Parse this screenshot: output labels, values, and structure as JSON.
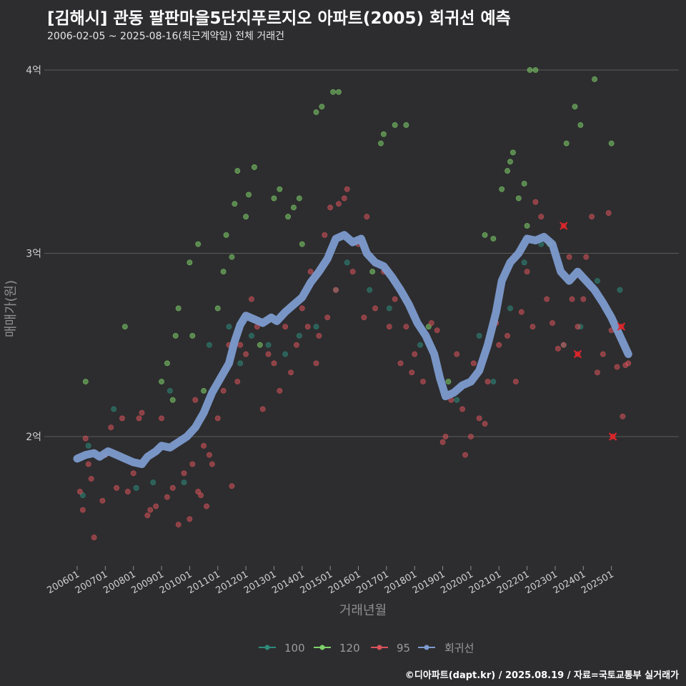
{
  "header": {
    "title": "[김해시] 관동 팔판마을5단지푸르지오 아파트(2005) 회귀선 예측",
    "subtitle": "2006-02-05 ~ 2025-08-16(최근계약일) 전체 거래건"
  },
  "caption": "©디아파트(dapt.kr) / 2025.08.19 / 자료=국토교통부 실거래가",
  "colors": {
    "background": "#2d2d2f",
    "grid": "#5a5a5a",
    "s100": "#2e8b7a",
    "s120": "#7fd16a",
    "s95": "#d9535a",
    "regression": "#7d9bcf",
    "cancelled": "#e0262b"
  },
  "chart_data": {
    "type": "scatter",
    "title": "[김해시] 관동 팔판마을5단지푸르지오 아파트(2005) 회귀선 예측",
    "xlabel": "거래년월",
    "ylabel": "매매가(원)",
    "x_ticks": [
      "200601",
      "200701",
      "200801",
      "200901",
      "201001",
      "201101",
      "201201",
      "201301",
      "201401",
      "201501",
      "201601",
      "201701",
      "201801",
      "201901",
      "202001",
      "202101",
      "202201",
      "202301",
      "202401",
      "202501"
    ],
    "y_ticks": [
      {
        "value": 2,
        "label": "2억"
      },
      {
        "value": 3,
        "label": "3억"
      },
      {
        "value": 4,
        "label": "4억"
      }
    ],
    "ylim": [
      1.3,
      4.05
    ],
    "xlim": [
      2005.85,
      2025.75
    ],
    "grid": true,
    "legend_position": "bottom",
    "legend": [
      "100",
      "120",
      "95",
      "회귀선"
    ],
    "series": [
      {
        "name": "100",
        "key": "s100",
        "points": [
          [
            2006.2,
            1.68
          ],
          [
            2006.4,
            1.95
          ],
          [
            2007.3,
            2.15
          ],
          [
            2008.1,
            1.72
          ],
          [
            2008.7,
            1.75
          ],
          [
            2009.3,
            2.25
          ],
          [
            2009.8,
            1.75
          ],
          [
            2010.2,
            2.05
          ],
          [
            2010.7,
            2.5
          ],
          [
            2011.4,
            2.6
          ],
          [
            2011.8,
            2.4
          ],
          [
            2012.2,
            2.55
          ],
          [
            2012.8,
            2.5
          ],
          [
            2013.4,
            2.45
          ],
          [
            2013.9,
            2.55
          ],
          [
            2014.5,
            2.6
          ],
          [
            2015.2,
            2.8
          ],
          [
            2015.6,
            2.95
          ],
          [
            2016.4,
            2.8
          ],
          [
            2017.1,
            2.7
          ],
          [
            2018.2,
            2.5
          ],
          [
            2019.5,
            2.2
          ],
          [
            2020.3,
            2.55
          ],
          [
            2020.8,
            2.3
          ],
          [
            2021.4,
            2.7
          ],
          [
            2021.9,
            2.95
          ],
          [
            2022.5,
            3.05
          ],
          [
            2023.3,
            2.5
          ],
          [
            2023.9,
            2.6
          ],
          [
            2024.5,
            2.85
          ],
          [
            2025.3,
            2.8
          ]
        ]
      },
      {
        "name": "120",
        "key": "s120",
        "points": [
          [
            2006.3,
            2.3
          ],
          [
            2007.7,
            2.6
          ],
          [
            2009.0,
            2.3
          ],
          [
            2009.2,
            2.4
          ],
          [
            2009.4,
            2.2
          ],
          [
            2009.5,
            2.55
          ],
          [
            2009.6,
            2.7
          ],
          [
            2010.0,
            2.95
          ],
          [
            2010.1,
            2.55
          ],
          [
            2010.3,
            3.05
          ],
          [
            2010.5,
            2.25
          ],
          [
            2011.0,
            2.7
          ],
          [
            2011.2,
            2.9
          ],
          [
            2011.3,
            3.1
          ],
          [
            2011.5,
            2.98
          ],
          [
            2011.6,
            3.27
          ],
          [
            2011.7,
            3.45
          ],
          [
            2012.0,
            3.2
          ],
          [
            2012.1,
            3.32
          ],
          [
            2012.3,
            3.47
          ],
          [
            2012.5,
            2.5
          ],
          [
            2013.0,
            3.3
          ],
          [
            2013.2,
            3.35
          ],
          [
            2013.5,
            3.2
          ],
          [
            2013.7,
            3.25
          ],
          [
            2013.9,
            3.3
          ],
          [
            2014.0,
            3.05
          ],
          [
            2014.5,
            3.77
          ],
          [
            2014.7,
            3.8
          ],
          [
            2015.1,
            3.88
          ],
          [
            2015.3,
            3.88
          ],
          [
            2016.5,
            2.9
          ],
          [
            2016.8,
            3.6
          ],
          [
            2016.9,
            3.65
          ],
          [
            2017.3,
            3.7
          ],
          [
            2017.7,
            3.7
          ],
          [
            2018.5,
            2.6
          ],
          [
            2019.2,
            2.3
          ],
          [
            2020.5,
            3.1
          ],
          [
            2020.8,
            3.08
          ],
          [
            2021.1,
            3.35
          ],
          [
            2021.3,
            3.45
          ],
          [
            2021.4,
            3.5
          ],
          [
            2021.5,
            3.55
          ],
          [
            2021.7,
            3.3
          ],
          [
            2021.9,
            3.38
          ],
          [
            2022.0,
            3.15
          ],
          [
            2022.1,
            4.0
          ],
          [
            2022.3,
            4.0
          ],
          [
            2022.8,
            3.05
          ],
          [
            2023.4,
            3.6
          ],
          [
            2023.7,
            3.8
          ],
          [
            2023.9,
            3.7
          ],
          [
            2024.4,
            3.95
          ],
          [
            2025.0,
            3.6
          ]
        ]
      },
      {
        "name": "95",
        "key": "s95",
        "points": [
          [
            2006.1,
            1.7
          ],
          [
            2006.2,
            1.6
          ],
          [
            2006.3,
            1.99
          ],
          [
            2006.4,
            1.85
          ],
          [
            2006.5,
            1.77
          ],
          [
            2006.6,
            1.45
          ],
          [
            2006.9,
            1.65
          ],
          [
            2007.0,
            1.9
          ],
          [
            2007.2,
            2.05
          ],
          [
            2007.4,
            1.72
          ],
          [
            2007.6,
            2.1
          ],
          [
            2007.8,
            1.7
          ],
          [
            2008.0,
            1.8
          ],
          [
            2008.2,
            2.1
          ],
          [
            2008.3,
            2.13
          ],
          [
            2008.5,
            1.57
          ],
          [
            2008.6,
            1.6
          ],
          [
            2008.8,
            1.62
          ],
          [
            2009.0,
            2.1
          ],
          [
            2009.2,
            1.67
          ],
          [
            2009.4,
            1.72
          ],
          [
            2009.6,
            1.52
          ],
          [
            2009.8,
            1.8
          ],
          [
            2010.0,
            1.55
          ],
          [
            2010.1,
            1.85
          ],
          [
            2010.2,
            2.2
          ],
          [
            2010.3,
            1.7
          ],
          [
            2010.4,
            1.68
          ],
          [
            2010.5,
            1.95
          ],
          [
            2010.6,
            1.62
          ],
          [
            2010.7,
            1.9
          ],
          [
            2010.8,
            1.85
          ],
          [
            2011.0,
            2.1
          ],
          [
            2011.2,
            2.25
          ],
          [
            2011.4,
            2.5
          ],
          [
            2011.5,
            1.73
          ],
          [
            2011.7,
            2.3
          ],
          [
            2011.8,
            2.5
          ],
          [
            2012.0,
            2.45
          ],
          [
            2012.2,
            2.75
          ],
          [
            2012.4,
            2.6
          ],
          [
            2012.6,
            2.15
          ],
          [
            2012.8,
            2.45
          ],
          [
            2013.0,
            2.4
          ],
          [
            2013.2,
            2.25
          ],
          [
            2013.4,
            2.6
          ],
          [
            2013.6,
            2.35
          ],
          [
            2013.8,
            2.5
          ],
          [
            2014.0,
            2.7
          ],
          [
            2014.2,
            2.6
          ],
          [
            2014.3,
            2.9
          ],
          [
            2014.5,
            2.4
          ],
          [
            2014.6,
            2.55
          ],
          [
            2014.8,
            3.1
          ],
          [
            2014.9,
            2.65
          ],
          [
            2015.0,
            3.25
          ],
          [
            2015.2,
            2.8
          ],
          [
            2015.3,
            3.27
          ],
          [
            2015.5,
            3.3
          ],
          [
            2015.6,
            3.35
          ],
          [
            2015.8,
            2.9
          ],
          [
            2016.0,
            3.05
          ],
          [
            2016.2,
            2.65
          ],
          [
            2016.3,
            3.2
          ],
          [
            2016.6,
            2.7
          ],
          [
            2016.9,
            2.9
          ],
          [
            2017.1,
            2.6
          ],
          [
            2017.3,
            2.75
          ],
          [
            2017.5,
            2.4
          ],
          [
            2017.7,
            2.6
          ],
          [
            2017.9,
            2.35
          ],
          [
            2018.0,
            2.45
          ],
          [
            2018.3,
            2.3
          ],
          [
            2018.6,
            2.62
          ],
          [
            2018.8,
            2.58
          ],
          [
            2019.0,
            1.97
          ],
          [
            2019.1,
            2.0
          ],
          [
            2019.3,
            2.2
          ],
          [
            2019.5,
            2.45
          ],
          [
            2019.7,
            2.15
          ],
          [
            2019.8,
            1.9
          ],
          [
            2020.0,
            2.0
          ],
          [
            2020.1,
            2.4
          ],
          [
            2020.3,
            2.1
          ],
          [
            2020.5,
            2.07
          ],
          [
            2020.6,
            2.3
          ],
          [
            2020.9,
            2.62
          ],
          [
            2021.0,
            2.5
          ],
          [
            2021.3,
            2.55
          ],
          [
            2021.6,
            2.3
          ],
          [
            2021.8,
            2.68
          ],
          [
            2022.0,
            2.9
          ],
          [
            2022.2,
            2.6
          ],
          [
            2022.3,
            3.28
          ],
          [
            2022.5,
            3.2
          ],
          [
            2022.7,
            2.75
          ],
          [
            2022.9,
            2.62
          ],
          [
            2023.1,
            2.48
          ],
          [
            2023.3,
            2.5
          ],
          [
            2023.5,
            2.98
          ],
          [
            2023.6,
            2.75
          ],
          [
            2023.8,
            2.6
          ],
          [
            2024.0,
            2.75
          ],
          [
            2024.1,
            2.98
          ],
          [
            2024.3,
            3.2
          ],
          [
            2024.5,
            2.35
          ],
          [
            2024.7,
            2.45
          ],
          [
            2024.9,
            3.22
          ],
          [
            2025.0,
            2.58
          ],
          [
            2025.2,
            2.38
          ],
          [
            2025.4,
            2.11
          ],
          [
            2025.5,
            2.39
          ],
          [
            2025.6,
            2.4
          ]
        ]
      },
      {
        "name": "cancelled",
        "key": "cancelled",
        "points": [
          [
            2023.3,
            3.15
          ],
          [
            2023.8,
            2.45
          ],
          [
            2025.05,
            2.0
          ],
          [
            2025.35,
            2.6
          ]
        ]
      },
      {
        "name": "회귀선",
        "key": "regression",
        "points": [
          [
            2006.0,
            1.88
          ],
          [
            2006.3,
            1.9
          ],
          [
            2006.6,
            1.91
          ],
          [
            2006.8,
            1.89
          ],
          [
            2007.1,
            1.92
          ],
          [
            2007.4,
            1.9
          ],
          [
            2007.7,
            1.88
          ],
          [
            2008.0,
            1.86
          ],
          [
            2008.3,
            1.85
          ],
          [
            2008.5,
            1.89
          ],
          [
            2008.8,
            1.92
          ],
          [
            2009.0,
            1.95
          ],
          [
            2009.3,
            1.94
          ],
          [
            2009.6,
            1.97
          ],
          [
            2009.9,
            2.0
          ],
          [
            2010.2,
            2.05
          ],
          [
            2010.5,
            2.13
          ],
          [
            2010.8,
            2.24
          ],
          [
            2011.1,
            2.32
          ],
          [
            2011.4,
            2.4
          ],
          [
            2011.6,
            2.52
          ],
          [
            2011.8,
            2.61
          ],
          [
            2012.0,
            2.66
          ],
          [
            2012.3,
            2.64
          ],
          [
            2012.6,
            2.62
          ],
          [
            2012.9,
            2.65
          ],
          [
            2013.1,
            2.63
          ],
          [
            2013.4,
            2.68
          ],
          [
            2013.7,
            2.72
          ],
          [
            2014.0,
            2.76
          ],
          [
            2014.3,
            2.84
          ],
          [
            2014.6,
            2.9
          ],
          [
            2014.9,
            2.97
          ],
          [
            2015.2,
            3.08
          ],
          [
            2015.5,
            3.1
          ],
          [
            2015.8,
            3.06
          ],
          [
            2016.1,
            3.08
          ],
          [
            2016.3,
            3.0
          ],
          [
            2016.6,
            2.95
          ],
          [
            2016.9,
            2.93
          ],
          [
            2017.2,
            2.87
          ],
          [
            2017.5,
            2.8
          ],
          [
            2017.8,
            2.72
          ],
          [
            2018.1,
            2.62
          ],
          [
            2018.4,
            2.55
          ],
          [
            2018.7,
            2.45
          ],
          [
            2018.9,
            2.32
          ],
          [
            2019.1,
            2.22
          ],
          [
            2019.4,
            2.24
          ],
          [
            2019.7,
            2.28
          ],
          [
            2020.0,
            2.3
          ],
          [
            2020.3,
            2.36
          ],
          [
            2020.6,
            2.5
          ],
          [
            2020.9,
            2.68
          ],
          [
            2021.1,
            2.85
          ],
          [
            2021.4,
            2.95
          ],
          [
            2021.7,
            3.0
          ],
          [
            2022.0,
            3.08
          ],
          [
            2022.3,
            3.07
          ],
          [
            2022.6,
            3.09
          ],
          [
            2022.9,
            3.05
          ],
          [
            2023.2,
            2.9
          ],
          [
            2023.5,
            2.85
          ],
          [
            2023.8,
            2.9
          ],
          [
            2024.1,
            2.85
          ],
          [
            2024.4,
            2.8
          ],
          [
            2024.7,
            2.73
          ],
          [
            2025.0,
            2.65
          ],
          [
            2025.3,
            2.55
          ],
          [
            2025.6,
            2.45
          ]
        ]
      }
    ]
  }
}
